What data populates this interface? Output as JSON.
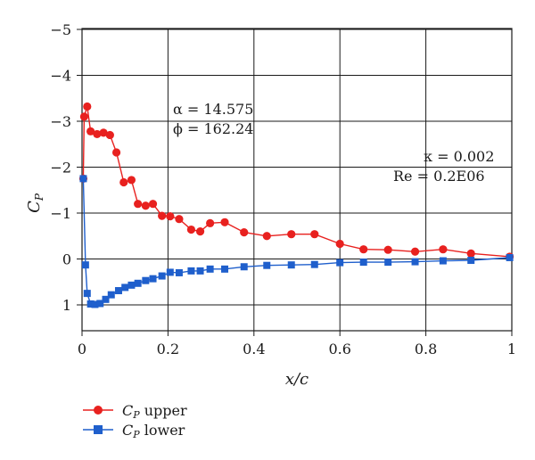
{
  "chart_data": {
    "type": "line",
    "xlabel": "x/c",
    "ylabel_main": "C",
    "ylabel_sub": "P",
    "xlim": [
      0,
      1
    ],
    "ylim": [
      -5,
      1.6
    ],
    "y_inverted": true,
    "grid": true,
    "x_ticks": [
      0,
      0.2,
      0.4,
      0.6,
      0.8,
      1
    ],
    "x_tick_labels": [
      "0",
      "0.2",
      "0.4",
      "0.6",
      "0.8",
      "1"
    ],
    "y_ticks": [
      -5,
      -4,
      -3,
      -2,
      -1,
      0,
      1
    ],
    "y_tick_labels": [
      "−5",
      "−4",
      "−3",
      "−2",
      "−1",
      "0",
      "1"
    ],
    "annotations": {
      "alpha": "α = 14.575",
      "phi": "ϕ = 162.24",
      "kappa": "κ = 0.002",
      "re": "Re = 0.2E06"
    },
    "legend_position": "bottom-left",
    "series": [
      {
        "name": "C",
        "name_sub": "P",
        "name_suffix": " upper",
        "color": "#e8211f",
        "marker": "circle",
        "x": [
          0.003,
          0.005,
          0.012,
          0.02,
          0.035,
          0.05,
          0.065,
          0.08,
          0.097,
          0.115,
          0.13,
          0.148,
          0.165,
          0.186,
          0.205,
          0.226,
          0.254,
          0.275,
          0.298,
          0.332,
          0.377,
          0.43,
          0.487,
          0.541,
          0.6,
          0.655,
          0.712,
          0.775,
          0.84,
          0.905,
          0.995
        ],
        "y": [
          -1.75,
          -3.1,
          -3.32,
          -2.78,
          -2.72,
          -2.75,
          -2.7,
          -2.32,
          -1.67,
          -1.72,
          -1.2,
          -1.16,
          -1.2,
          -0.94,
          -0.93,
          -0.87,
          -0.64,
          -0.6,
          -0.78,
          -0.8,
          -0.58,
          -0.5,
          -0.54,
          -0.54,
          -0.33,
          -0.21,
          -0.2,
          -0.16,
          -0.21,
          -0.12,
          -0.05
        ]
      },
      {
        "name": "C",
        "name_sub": "P",
        "name_suffix": " lower",
        "color": "#1f5fcc",
        "marker": "square",
        "x": [
          0.003,
          0.008,
          0.012,
          0.02,
          0.03,
          0.042,
          0.055,
          0.068,
          0.085,
          0.1,
          0.115,
          0.13,
          0.148,
          0.165,
          0.186,
          0.205,
          0.226,
          0.254,
          0.275,
          0.298,
          0.332,
          0.377,
          0.43,
          0.487,
          0.541,
          0.6,
          0.655,
          0.712,
          0.775,
          0.84,
          0.905,
          0.995
        ],
        "y": [
          -1.75,
          0.13,
          0.75,
          0.98,
          0.99,
          0.97,
          0.88,
          0.78,
          0.69,
          0.62,
          0.57,
          0.53,
          0.47,
          0.43,
          0.37,
          0.29,
          0.3,
          0.26,
          0.26,
          0.22,
          0.22,
          0.17,
          0.14,
          0.13,
          0.12,
          0.08,
          0.07,
          0.07,
          0.06,
          0.04,
          0.03,
          -0.03
        ]
      }
    ]
  }
}
